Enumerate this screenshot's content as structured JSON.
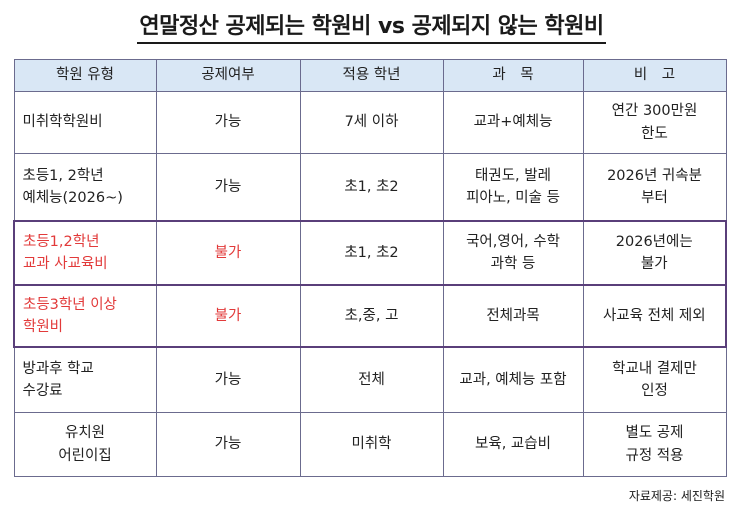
{
  "title": "연말정산 공제되는 학원비 vs 공제되지 않는 학원비",
  "table": {
    "headers": [
      "학원 유형",
      "공제여부",
      "적용 학년",
      "과　목",
      "비　고"
    ],
    "rows": [
      {
        "type": "미취학학원비",
        "deductible": "가능",
        "grade": "7세 이하",
        "subject": "교과+예체능",
        "note": "연간 300만원\n한도"
      },
      {
        "type": "초등1, 2학년\n예체능(2026~)",
        "deductible": "가능",
        "grade": "초1, 초2",
        "subject": "태권도, 발레\n피아노, 미술 등",
        "note": "2026년 귀속분\n부터"
      },
      {
        "type": "초등1,2학년\n교과 사교육비",
        "deductible": "불가",
        "grade": "초1, 초2",
        "subject": "국어,영어, 수학\n과학 등",
        "note": "2026년에는\n불가"
      },
      {
        "type": "초등3학년 이상\n학원비",
        "deductible": "불가",
        "grade": "초,중, 고",
        "subject": "전체과목",
        "note": "사교육 전체 제외"
      },
      {
        "type": "방과후 학교\n수강료",
        "deductible": "가능",
        "grade": "전체",
        "subject": "교과, 예체능 포함",
        "note": "학교내 결제만\n인정"
      },
      {
        "type": "유치원\n어린이집",
        "deductible": "가능",
        "grade": "미취학",
        "subject": "보육, 교습비",
        "note": "별도 공제\n규정 적용"
      }
    ]
  },
  "source": "자료제공: 세진학원",
  "colors": {
    "header_bg": "#d9e7f5",
    "highlight_text": "#e23a3a",
    "highlight_border": "#5a3f7a",
    "grid_line": "#6b6b8e"
  }
}
